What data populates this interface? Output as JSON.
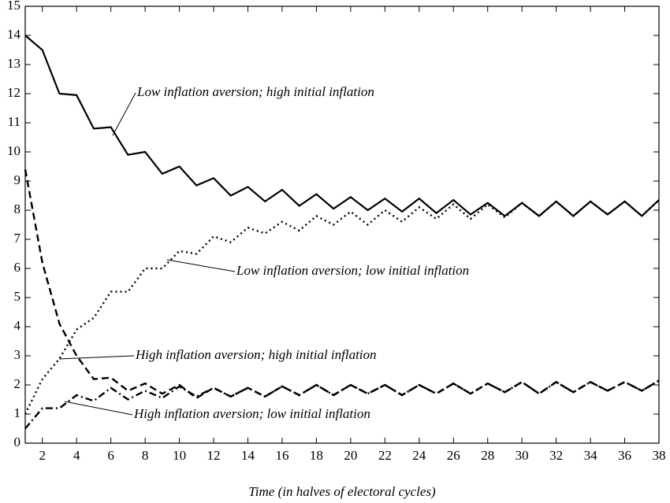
{
  "chart_data": {
    "type": "line",
    "x_label": "Time (in halves of electoral cycles)",
    "x": [
      1,
      2,
      3,
      4,
      5,
      6,
      7,
      8,
      9,
      10,
      11,
      12,
      13,
      14,
      15,
      16,
      17,
      18,
      19,
      20,
      21,
      22,
      23,
      24,
      25,
      26,
      27,
      28,
      29,
      30,
      31,
      32,
      33,
      34,
      35,
      36,
      37,
      38
    ],
    "xlim": [
      1,
      38
    ],
    "ylim": [
      0,
      15
    ],
    "xticks": [
      2,
      4,
      6,
      8,
      10,
      12,
      14,
      16,
      18,
      20,
      22,
      24,
      26,
      28,
      30,
      32,
      34,
      36,
      38
    ],
    "yticks": [
      0,
      1,
      2,
      3,
      4,
      5,
      6,
      7,
      8,
      9,
      10,
      11,
      12,
      13,
      14,
      15
    ],
    "series": [
      {
        "name": "Low inflation aversion; high initial inflation",
        "color": "#000000",
        "style": "solid",
        "values": [
          14,
          13.5,
          12,
          11.95,
          10.8,
          10.85,
          9.9,
          10,
          9.25,
          9.5,
          8.85,
          9.1,
          8.5,
          8.8,
          8.3,
          8.7,
          8.15,
          8.55,
          8.05,
          8.45,
          8.0,
          8.4,
          7.95,
          8.4,
          7.9,
          8.35,
          7.85,
          8.25,
          7.8,
          8.25,
          7.8,
          8.3,
          7.8,
          8.3,
          7.85,
          8.3,
          7.8,
          8.35
        ]
      },
      {
        "name": "Low inflation aversion; low initial inflation",
        "color": "#000000",
        "style": "dotted",
        "values": [
          1.0,
          2.2,
          2.9,
          3.9,
          4.3,
          5.2,
          5.2,
          6.0,
          6.0,
          6.6,
          6.5,
          7.1,
          6.9,
          7.4,
          7.2,
          7.6,
          7.3,
          7.8,
          7.5,
          7.95,
          7.5,
          8.0,
          7.6,
          8.1,
          7.7,
          8.2,
          7.7,
          8.2,
          7.75,
          8.25,
          7.8,
          8.3,
          7.8,
          8.3,
          7.85,
          8.3,
          7.8,
          8.35
        ]
      },
      {
        "name": "High inflation aversion; high initial inflation",
        "color": "#000000",
        "style": "dashed",
        "values": [
          9.4,
          6.2,
          4.1,
          3.0,
          2.2,
          2.25,
          1.8,
          2.05,
          1.7,
          2.0,
          1.55,
          1.9,
          1.6,
          1.9,
          1.6,
          1.95,
          1.65,
          2.0,
          1.65,
          2.0,
          1.7,
          2.0,
          1.65,
          2.0,
          1.7,
          2.05,
          1.7,
          2.05,
          1.75,
          2.1,
          1.7,
          2.1,
          1.75,
          2.1,
          1.8,
          2.1,
          1.8,
          2.15
        ]
      },
      {
        "name": "High inflation aversion; low initial inflation",
        "color": "#000000",
        "style": "dashdot",
        "values": [
          0.5,
          1.2,
          1.2,
          1.65,
          1.45,
          1.9,
          1.5,
          1.8,
          1.55,
          1.95,
          1.6,
          1.9,
          1.6,
          1.9,
          1.6,
          1.95,
          1.65,
          2.0,
          1.65,
          2.0,
          1.7,
          2.0,
          1.65,
          2.0,
          1.7,
          2.05,
          1.7,
          2.05,
          1.75,
          2.1,
          1.7,
          2.1,
          1.75,
          2.1,
          1.8,
          2.1,
          1.8,
          2.15
        ]
      }
    ]
  }
}
